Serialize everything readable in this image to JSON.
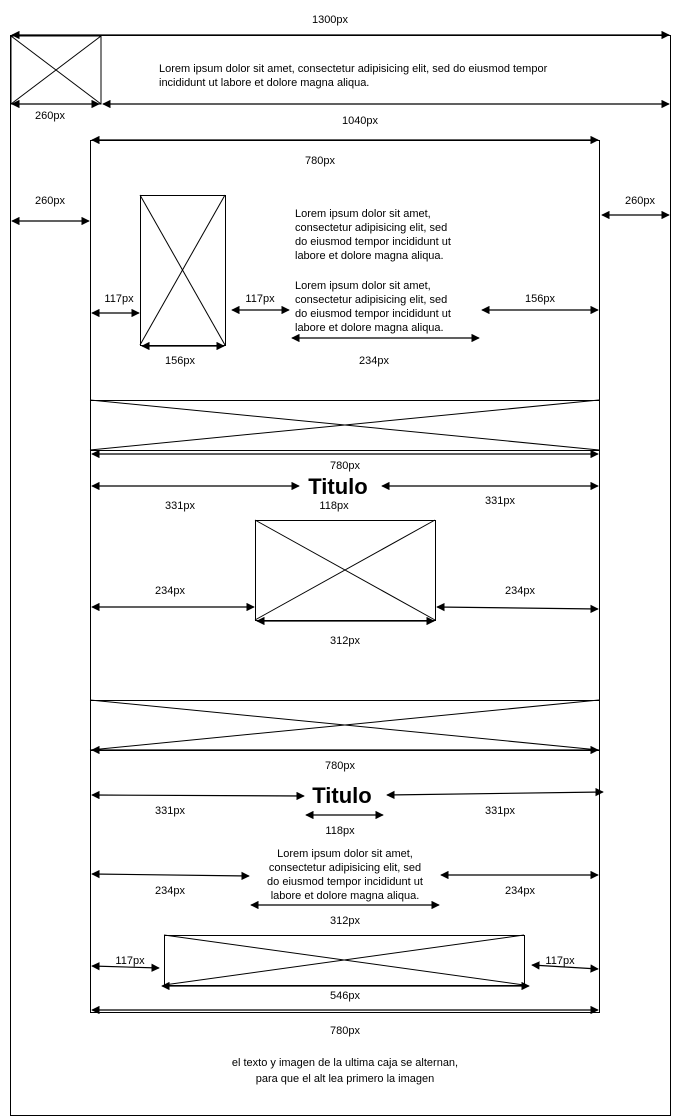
{
  "dims": {
    "d1300": "1300px",
    "d260": "260px",
    "d1040": "1040px",
    "d780": "780px",
    "d117": "117px",
    "d156": "156px",
    "d234": "234px",
    "d331": "331px",
    "d118": "118px",
    "d312": "312px",
    "d546": "546px"
  },
  "header_text": [
    "Lorem ipsum dolor sit amet, consectetur adipisicing elit, sed do eiusmod tempor",
    "incididunt ut labore et dolore magna aliqua."
  ],
  "section1_text": [
    "Lorem ipsum dolor sit amet,",
    "consectetur adipisicing elit, sed",
    "do eiusmod tempor incididunt ut",
    "labore et dolore magna aliqua."
  ],
  "section4_text": [
    "Lorem ipsum dolor sit amet,",
    "consectetur adipisicing elit, sed",
    "do eiusmod tempor incididunt ut",
    "labore et dolore magna aliqua."
  ],
  "title": "Titulo",
  "footnote": [
    "el texto y imagen de la ultima caja se alternan,",
    "para que el alt lea primero la imagen"
  ]
}
